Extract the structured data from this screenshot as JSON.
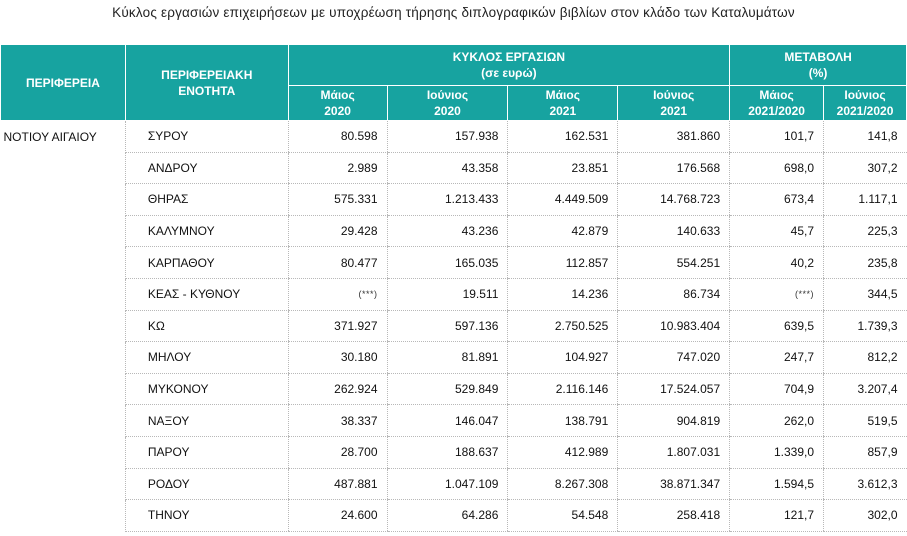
{
  "title": "Κύκλος εργασιών επιχειρήσεων με υποχρέωση τήρησης διπλογραφικών βιβλίων στον κλάδο των Καταλυμάτων",
  "headers": {
    "region": "ΠΕΡΙΦΕΡΕΙΑ",
    "unit_line1": "ΠΕΡΙΦΕΡΕΙΑΚΗ",
    "unit_line2": "ΕΝΟΤΗΤΑ",
    "turnover_line1": "ΚΥΚΛΟΣ ΕΡΓΑΣΙΩΝ",
    "turnover_line2": "(σε ευρώ)",
    "change_line1": "ΜΕΤΑΒΟΛΗ",
    "change_line2": "(%)",
    "sub": [
      [
        "Μάιος",
        "2020"
      ],
      [
        "Ιούνιος",
        "2020"
      ],
      [
        "Μάιος",
        "2021"
      ],
      [
        "Ιούνιος",
        "2021"
      ],
      [
        "Μάιος",
        "2021/2020"
      ],
      [
        "Ιούνιος",
        "2021/2020"
      ]
    ]
  },
  "region": "ΝΟΤΙΟΥ ΑΙΓΑΙΟΥ",
  "rows": [
    [
      "ΣΥΡΟΥ",
      "80.598",
      "157.938",
      "162.531",
      "381.860",
      "101,7",
      "141,8"
    ],
    [
      "ΑΝΔΡΟΥ",
      "2.989",
      "43.358",
      "23.851",
      "176.568",
      "698,0",
      "307,2"
    ],
    [
      "ΘΗΡΑΣ",
      "575.331",
      "1.213.433",
      "4.449.509",
      "14.768.723",
      "673,4",
      "1.117,1"
    ],
    [
      "ΚΑΛΥΜΝΟΥ",
      "29.428",
      "43.236",
      "42.879",
      "140.633",
      "45,7",
      "225,3"
    ],
    [
      "ΚΑΡΠΑΘΟΥ",
      "80.477",
      "165.035",
      "112.857",
      "554.251",
      "40,2",
      "235,8"
    ],
    [
      "ΚΕΑΣ - ΚΥΘΝΟΥ",
      "(***)",
      "19.511",
      "14.236",
      "86.734",
      "(***)",
      "344,5"
    ],
    [
      "ΚΩ",
      "371.927",
      "597.136",
      "2.750.525",
      "10.983.404",
      "639,5",
      "1.739,3"
    ],
    [
      "ΜΗΛΟΥ",
      "30.180",
      "81.891",
      "104.927",
      "747.020",
      "247,7",
      "812,2"
    ],
    [
      "ΜΥΚΟΝΟΥ",
      "262.924",
      "529.849",
      "2.116.146",
      "17.524.057",
      "704,9",
      "3.207,4"
    ],
    [
      "ΝΑΞΟΥ",
      "38.337",
      "146.047",
      "138.791",
      "904.819",
      "262,0",
      "519,5"
    ],
    [
      "ΠΑΡΟΥ",
      "28.700",
      "188.637",
      "412.989",
      "1.807.031",
      "1.339,0",
      "857,9"
    ],
    [
      "ΡΟΔΟΥ",
      "487.881",
      "1.047.109",
      "8.267.308",
      "38.871.347",
      "1.594,5",
      "3.612,3"
    ],
    [
      "ΤΗΝΟΥ",
      "24.600",
      "64.286",
      "54.548",
      "258.418",
      "121,7",
      "302,0"
    ]
  ]
}
